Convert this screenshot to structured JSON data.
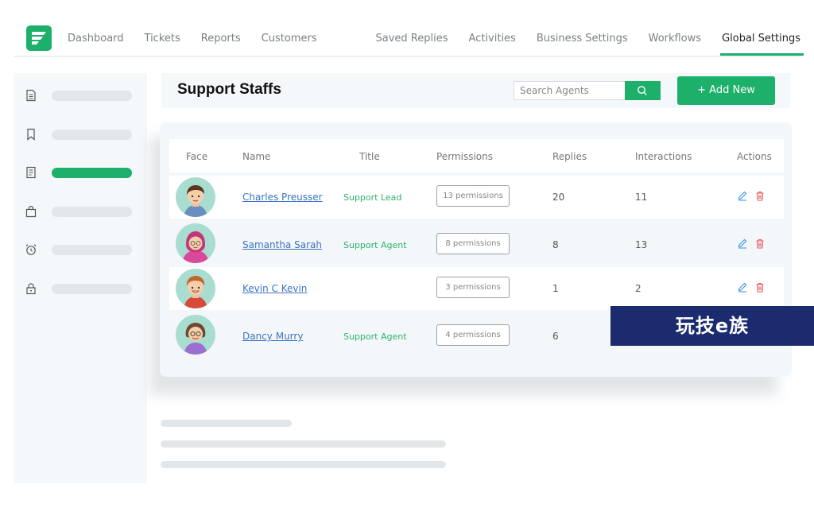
{
  "nav": {
    "left": [
      "Dashboard",
      "Tickets",
      "Reports",
      "Customers"
    ],
    "right": [
      "Saved Replies",
      "Activities",
      "Business Settings",
      "Workflows",
      "Global Settings"
    ],
    "active": "Global Settings"
  },
  "sidebar": {
    "icons": [
      "document-icon",
      "bookmark-icon",
      "list-document-icon",
      "bag-icon",
      "alarm-clock-icon",
      "lock-icon"
    ],
    "active_index": 2
  },
  "header": {
    "title": "Support Staffs",
    "search_placeholder": "Search Agents",
    "add_label": "+ Add New"
  },
  "table": {
    "columns": [
      "Face",
      "Name",
      "Title",
      "Permissions",
      "Replies",
      "Interactions",
      "Actions"
    ],
    "rows": [
      {
        "name": "Charles Preusser",
        "title": "Support Lead",
        "permissions": "13 permissions",
        "replies": "20",
        "interactions": "11"
      },
      {
        "name": "Samantha Sarah",
        "title": "Support Agent",
        "permissions": "8 permissions",
        "replies": "8",
        "interactions": "13"
      },
      {
        "name": "Kevin C Kevin",
        "title": "",
        "permissions": "3 permissions",
        "replies": "1",
        "interactions": "2"
      },
      {
        "name": "Dancy Murry",
        "title": "Support Agent",
        "permissions": "4 permissions",
        "replies": "6",
        "interactions": ""
      }
    ]
  },
  "colors": {
    "accent": "#1db06a",
    "link": "#3a73c2",
    "delete": "#e05555"
  },
  "watermark": "玩技e族"
}
